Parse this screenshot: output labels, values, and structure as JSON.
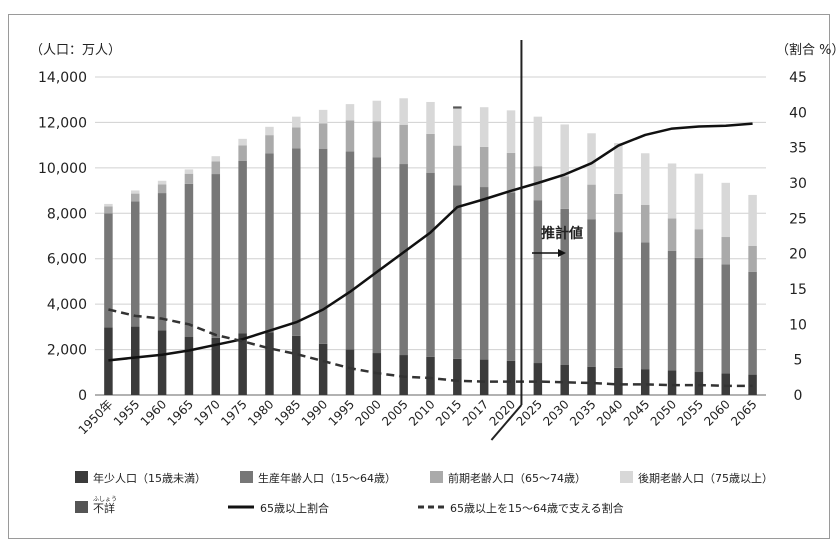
{
  "chart_data": {
    "type": "bar",
    "stacked": true,
    "categories": [
      "1950年",
      "1955",
      "1960",
      "1965",
      "1970",
      "1975",
      "1980",
      "1985",
      "1990",
      "1995",
      "2000",
      "2005",
      "2010",
      "2015",
      "2017",
      "2020",
      "2025",
      "2030",
      "2035",
      "2040",
      "2045",
      "2050",
      "2055",
      "2060",
      "2065"
    ],
    "left_axis_unit": "（人口：万人）",
    "right_axis_unit": "（割合 %）",
    "ylim": [
      0,
      14000
    ],
    "y_ticks": [
      "0",
      "2,000",
      "4,000",
      "6,000",
      "8,000",
      "10,000",
      "12,000",
      "14,000"
    ],
    "y2lim": [
      0,
      45
    ],
    "y2_ticks": [
      "0",
      "5",
      "10",
      "15",
      "20",
      "25",
      "30",
      "35",
      "40",
      "45"
    ],
    "estimate_start_category": "2025",
    "annotation": "推計値",
    "series": [
      {
        "name": "年少人口（15歳未満）",
        "color": "#3b3b3b",
        "values": [
          2979,
          3012,
          2843,
          2553,
          2515,
          2722,
          2751,
          2603,
          2254,
          2001,
          1847,
          1759,
          1684,
          1595,
          1559,
          1507,
          1407,
          1321,
          1246,
          1194,
          1138,
          1077,
          1012,
          951,
          898
        ]
      },
      {
        "name": "生産年齢人口（15〜64歳）",
        "color": "#777777",
        "values": [
          5017,
          5517,
          6047,
          6744,
          7212,
          7581,
          7883,
          8251,
          8590,
          8717,
          8622,
          8409,
          8103,
          7629,
          7596,
          7406,
          7170,
          6875,
          6494,
          5978,
          5584,
          5275,
          5028,
          4793,
          4529
        ]
      },
      {
        "name": "前期老齢人口（65〜74歳）",
        "color": "#aaaaaa",
        "values": [
          309,
          338,
          379,
          445,
          562,
          690,
          807,
          930,
          1112,
          1371,
          1586,
          1731,
          1707,
          1755,
          1767,
          1747,
          1497,
          1428,
          1522,
          1681,
          1643,
          1424,
          1258,
          1211,
          1133
        ]
      },
      {
        "name": "後期老齢人口（75歳以上）",
        "color": "#d8d8d8",
        "values": [
          107,
          139,
          163,
          190,
          225,
          284,
          366,
          470,
          597,
          717,
          901,
          1164,
          1407,
          1632,
          1748,
          1872,
          2180,
          2288,
          2260,
          2239,
          2277,
          2417,
          2446,
          2387,
          2248
        ]
      },
      {
        "name": "不詳",
        "color": "#555555",
        "values": [
          0,
          0,
          0,
          0,
          0,
          0,
          0,
          0,
          0,
          0,
          0,
          0,
          0,
          95,
          0,
          0,
          0,
          0,
          0,
          0,
          0,
          0,
          0,
          0,
          0
        ]
      }
    ],
    "lines": [
      {
        "name": "65歳以上割合",
        "style": "solid",
        "color": "#111111",
        "values": [
          4.9,
          5.3,
          5.7,
          6.3,
          7.1,
          7.9,
          9.1,
          10.3,
          12.1,
          14.6,
          17.4,
          20.2,
          23.0,
          26.6,
          27.7,
          28.9,
          30.0,
          31.2,
          32.8,
          35.3,
          36.8,
          37.7,
          38.0,
          38.1,
          38.4
        ]
      },
      {
        "name": "65歳以上を15〜64歳で支える割合",
        "style": "dashed",
        "color": "#333333",
        "values": [
          12.1,
          11.2,
          10.8,
          10.0,
          8.5,
          7.6,
          6.6,
          5.8,
          4.8,
          3.8,
          3.1,
          2.6,
          2.4,
          2.0,
          1.9,
          1.9,
          1.9,
          1.8,
          1.7,
          1.5,
          1.5,
          1.4,
          1.4,
          1.3,
          1.3
        ]
      }
    ],
    "legend": [
      {
        "label": "年少人口（15歳未満）",
        "kind": "box",
        "color": "#3b3b3b"
      },
      {
        "label": "生産年齢人口（15〜64歳）",
        "kind": "box",
        "color": "#777777"
      },
      {
        "label": "前期老齢人口（65〜74歳）",
        "kind": "box",
        "color": "#aaaaaa"
      },
      {
        "label": "後期老齢人口（75歳以上）",
        "kind": "box",
        "color": "#d8d8d8"
      },
      {
        "label": "不詳",
        "kind": "box",
        "color": "#555555",
        "ruby": "ふしょう"
      },
      {
        "label": "65歳以上割合",
        "kind": "line"
      },
      {
        "label": "65歳以上を15〜64歳で支える割合",
        "kind": "dash"
      }
    ]
  }
}
